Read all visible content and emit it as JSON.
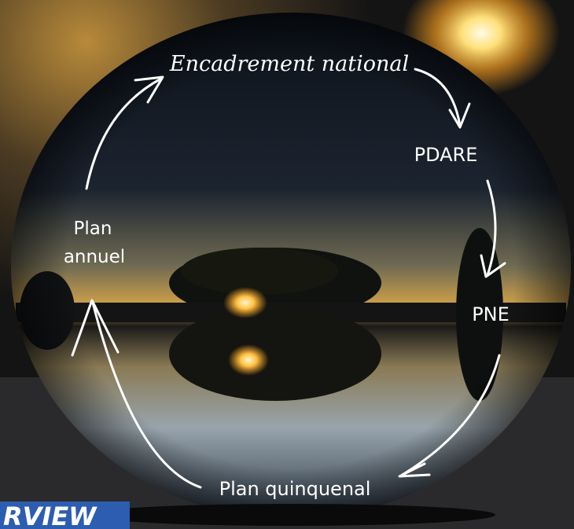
{
  "nodes": [
    {
      "label": "Encadrement national"
    },
    {
      "label": "PDARE"
    },
    {
      "label": "PNE"
    },
    {
      "label": "Plan quinquenal"
    },
    {
      "label": [
        "Plan",
        "annuel"
      ]
    }
  ],
  "banner": "RVIEW"
}
